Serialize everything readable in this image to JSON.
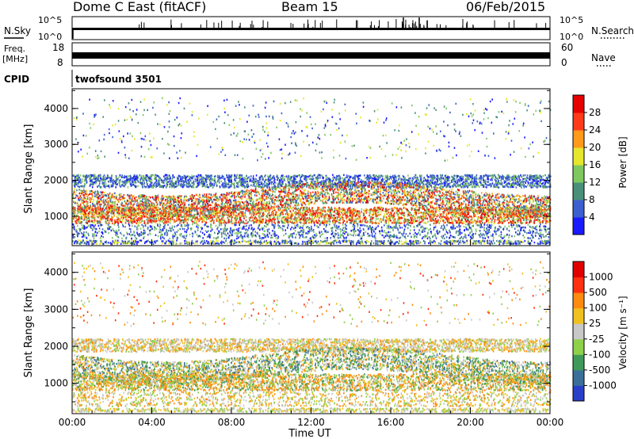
{
  "header": {
    "station": "Dome C East (fitACF)",
    "beam": "Beam 15",
    "date": "06/Feb/2015"
  },
  "top_panels": {
    "nsky": {
      "label": "N.Sky",
      "ticks": [
        "10^5",
        "10^0"
      ]
    },
    "nsearch": {
      "label": "N.Search",
      "ticks": [
        "10^5",
        "10^0"
      ]
    },
    "freq": {
      "label": "Freq.",
      "unit": "[MHz]",
      "ticks": [
        "18",
        "8"
      ]
    },
    "nave": {
      "label": "Nave",
      "ticks": [
        "60",
        "0"
      ]
    },
    "cpid": {
      "label": "CPID",
      "value": "twofsound 3501"
    }
  },
  "chart_data": [
    {
      "type": "heatmap",
      "name": "power",
      "ylabel": "Slant Range [km]",
      "xlabel": "Time UT",
      "x_ticks": [
        "00:00",
        "04:00",
        "08:00",
        "12:00",
        "16:00",
        "20:00",
        "00:00"
      ],
      "y_ticks": [
        1000,
        2000,
        3000,
        4000
      ],
      "ylim": [
        180,
        4550
      ],
      "xlim_hours": [
        0,
        24
      ],
      "colorbar": {
        "label": "Power [dB]",
        "ticks": [
          "28",
          "24",
          "20",
          "16",
          "12",
          "8",
          "4"
        ],
        "colors": [
          "#1a1aff",
          "#3b5fcf",
          "#4a8f7a",
          "#7fc860",
          "#e6e62e",
          "#ff9a1a",
          "#ff3a1a",
          "#e60000"
        ]
      }
    },
    {
      "type": "heatmap",
      "name": "velocity",
      "ylabel": "Slant Range [km]",
      "xlabel": "Time UT",
      "x_ticks": [
        "00:00",
        "04:00",
        "08:00",
        "12:00",
        "16:00",
        "20:00",
        "00:00"
      ],
      "y_ticks": [
        1000,
        2000,
        3000,
        4000
      ],
      "ylim": [
        180,
        4550
      ],
      "xlim_hours": [
        0,
        24
      ],
      "colorbar": {
        "label": "Velocity [m s⁻¹]",
        "ticks": [
          "1000",
          "500",
          "100",
          "25",
          "-25",
          "-100",
          "-500",
          "-1000"
        ],
        "colors": [
          "#2a3fc8",
          "#3a6f9a",
          "#3f9a5a",
          "#8fd04a",
          "#c8c8c8",
          "#f0c020",
          "#ff8a10",
          "#ff3010",
          "#e00000"
        ]
      }
    }
  ],
  "colors": {
    "axis": "#000000",
    "scatter_bands": "#c8c8c8"
  }
}
